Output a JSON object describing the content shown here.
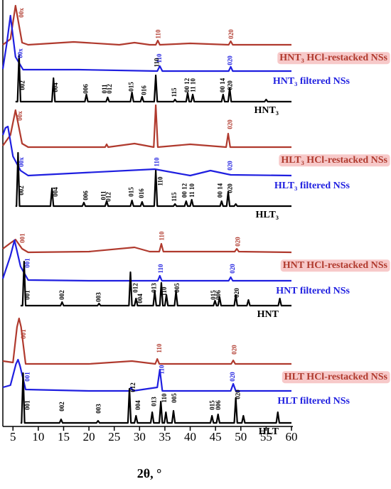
{
  "chart_data": {
    "type": "line",
    "x_label": "2θ, °",
    "xlim": [
      3,
      60
    ],
    "ylim": [
      0,
      600
    ],
    "xticks": [
      5,
      10,
      15,
      20,
      25,
      30,
      35,
      40,
      45,
      50,
      55,
      60
    ],
    "series": [
      {
        "name": "HNT₃ HCl-restacked NSs",
        "color": "#b03a2e",
        "x": [
          3,
          4.5,
          5.5,
          6.8,
          8,
          17,
          26,
          29,
          32,
          33.2,
          33.6,
          34,
          40,
          47.6,
          48,
          48.4,
          60
        ],
        "values": [
          537,
          545,
          592,
          540,
          537,
          541,
          537,
          540,
          537,
          537,
          543,
          537,
          539,
          537,
          542,
          537,
          537
        ]
      },
      {
        "name": "HNT₃ filtered NSs",
        "color": "#1f1fe0",
        "x": [
          3,
          3.8,
          4.5,
          5.5,
          7,
          18,
          33.5,
          34,
          34.5,
          47.6,
          48,
          48.4,
          60
        ],
        "values": [
          503,
          540,
          578,
          520,
          502,
          502,
          500,
          507,
          500,
          500,
          506,
          500,
          500
        ]
      },
      {
        "name": "HNT₃",
        "color": "#000000",
        "x": [
          5.5,
          5.9,
          6.2,
          6.5,
          12.7,
          13,
          13.3,
          19.2,
          19.5,
          19.8,
          23.4,
          23.7,
          24,
          28.2,
          28.5,
          28.8,
          30.2,
          30.5,
          30.8,
          32.9,
          33.2,
          33.5,
          36.7,
          37,
          37.3,
          39.2,
          39.5,
          39.8,
          40.2,
          40.5,
          40.8,
          46.2,
          46.5,
          46.8,
          47.5,
          47.8,
          48.1,
          54.7,
          55,
          55.3,
          60
        ],
        "values": [
          457,
          457,
          522,
          457,
          457,
          490,
          457,
          457,
          467,
          457,
          457,
          463,
          457,
          457,
          470,
          457,
          457,
          464,
          457,
          457,
          494,
          457,
          457,
          460,
          457,
          457,
          469,
          457,
          457,
          467,
          457,
          457,
          467,
          457,
          457,
          476,
          457,
          457,
          460,
          457,
          457
        ]
      },
      {
        "name": "HLT₃ HCl-restacked NSs",
        "color": "#b03a2e",
        "x": [
          3,
          4.5,
          5.5,
          6.8,
          8,
          23.2,
          23.5,
          23.8,
          29,
          32.8,
          33.2,
          33.6,
          40,
          47.1,
          47.5,
          47.9,
          60
        ],
        "values": [
          395,
          410,
          445,
          398,
          393,
          393,
          397,
          393,
          398,
          393,
          452,
          393,
          397,
          393,
          412,
          393,
          393
        ]
      },
      {
        "name": "HLT₃ filtered NSs",
        "color": "#1f1fe0",
        "x": [
          3,
          3.5,
          4,
          5,
          6.5,
          8,
          33,
          40,
          44,
          48,
          60
        ],
        "values": [
          410,
          420,
          422,
          380,
          360,
          353,
          362,
          353,
          360,
          354,
          353
        ]
      },
      {
        "name": "HLT₃",
        "color": "#000000",
        "x": [
          5.5,
          5.7,
          6,
          6.3,
          12.4,
          12.7,
          13,
          18.7,
          19,
          19.3,
          23.2,
          23.5,
          23.8,
          28.2,
          28.5,
          28.8,
          30.2,
          30.5,
          30.8,
          32.9,
          33.2,
          33.5,
          36.7,
          37,
          37.3,
          38.9,
          39.2,
          39.5,
          40,
          40.3,
          40.6,
          45.9,
          46.2,
          46.5,
          47.2,
          47.5,
          47.8,
          48.7,
          49,
          49.3,
          60
        ],
        "values": [
          310,
          310,
          385,
          310,
          310,
          335,
          310,
          310,
          315,
          310,
          310,
          317,
          310,
          310,
          318,
          310,
          310,
          316,
          310,
          310,
          360,
          310,
          310,
          313,
          310,
          310,
          317,
          310,
          310,
          319,
          310,
          310,
          317,
          310,
          310,
          330,
          310,
          310,
          313,
          310,
          310
        ]
      },
      {
        "name": "HNT HCl-restacked NSs",
        "color": "#b03a2e",
        "x": [
          3,
          4.5,
          5.5,
          6.8,
          8,
          20,
          29,
          32,
          33.9,
          34.3,
          34.7,
          45,
          48.8,
          49.2,
          49.6,
          60
        ],
        "values": [
          250,
          258,
          263,
          250,
          245,
          246,
          252,
          246,
          246,
          257,
          246,
          246,
          246,
          250,
          246,
          245
        ]
      },
      {
        "name": "HNT filtered NSs",
        "color": "#1f1fe0",
        "x": [
          3,
          4.5,
          5.3,
          6.5,
          8,
          20,
          33.6,
          34,
          34.4,
          47.6,
          48,
          48.4,
          60
        ],
        "values": [
          208,
          240,
          262,
          225,
          206,
          205,
          205,
          212,
          205,
          205,
          210,
          205,
          205
        ]
      },
      {
        "name": "HNT",
        "color": "#000000",
        "x": [
          6.5,
          6.9,
          7.2,
          7.5,
          14.4,
          14.7,
          15,
          21.7,
          22,
          22.3,
          27.9,
          28.2,
          28.5,
          29,
          29.3,
          29.6,
          32.7,
          33,
          33.3,
          34,
          34.3,
          34.6,
          35,
          35.3,
          35.6,
          36.9,
          37.2,
          37.5,
          44.6,
          44.9,
          45.2,
          45.5,
          45.8,
          46.1,
          48.7,
          49,
          49.3,
          51.2,
          51.5,
          51.8,
          57.4,
          57.7,
          58,
          60
        ],
        "values": [
          170,
          170,
          232,
          170,
          170,
          175,
          170,
          170,
          173,
          170,
          170,
          217,
          170,
          170,
          180,
          170,
          170,
          190,
          170,
          170,
          202,
          170,
          170,
          185,
          170,
          170,
          190,
          170,
          170,
          177,
          170,
          170,
          182,
          170,
          170,
          185,
          170,
          170,
          178,
          170,
          170,
          180,
          170,
          170
        ]
      },
      {
        "name": "HLT HCl-restacked NSs",
        "color": "#b03a2e",
        "x": [
          3,
          5,
          5.8,
          6.2,
          6.6,
          7.5,
          20,
          28.5,
          33.1,
          33.5,
          33.9,
          48.1,
          48.5,
          48.9,
          60
        ],
        "values": [
          92,
          90,
          140,
          152,
          140,
          88,
          88,
          92,
          88,
          95,
          88,
          88,
          93,
          88,
          88
        ]
      },
      {
        "name": "HLT filtered NSs",
        "color": "#1f1fe0",
        "x": [
          3,
          4.5,
          5.6,
          6,
          6.4,
          7.5,
          20,
          27.9,
          28.3,
          28.7,
          33.5,
          34,
          34.5,
          48,
          48.5,
          49,
          60
        ],
        "values": [
          55,
          58,
          88,
          94,
          85,
          52,
          50,
          50,
          55,
          50,
          55,
          80,
          50,
          50,
          60,
          50,
          50
        ]
      },
      {
        "name": "HLT",
        "color": "#000000",
        "x": [
          6.5,
          6.7,
          7,
          7.3,
          14.2,
          14.5,
          14.8,
          21.5,
          21.8,
          22.1,
          27.7,
          28,
          28.3,
          29,
          29.3,
          29.6,
          32.2,
          32.5,
          32.8,
          33.9,
          34.2,
          34.5,
          34.9,
          35.2,
          35.5,
          36.4,
          36.7,
          37,
          44,
          44.3,
          44.6,
          45.2,
          45.5,
          45.8,
          48.7,
          49,
          49.3,
          50.2,
          50.5,
          50.8,
          57,
          57.3,
          57.6,
          60
        ],
        "values": [
          5,
          5,
          75,
          5,
          5,
          10,
          5,
          5,
          8,
          5,
          5,
          53,
          5,
          5,
          15,
          5,
          5,
          20,
          5,
          5,
          35,
          5,
          5,
          20,
          5,
          5,
          22,
          5,
          5,
          15,
          5,
          5,
          17,
          5,
          5,
          40,
          5,
          5,
          15,
          5,
          5,
          20,
          5,
          5
        ]
      }
    ],
    "annotations": [
      {
        "text": "00x",
        "x": 6.8,
        "y": 582,
        "color": "#b03a2e"
      },
      {
        "text": "110",
        "x": 33.8,
        "y": 552,
        "color": "#b03a2e"
      },
      {
        "text": "020",
        "x": 48.2,
        "y": 552,
        "color": "#b03a2e"
      },
      {
        "text": "00x",
        "x": 6.6,
        "y": 525,
        "color": "#1f1fe0"
      },
      {
        "text": "110",
        "x": 34,
        "y": 518,
        "color": "#1f1fe0"
      },
      {
        "text": "020",
        "x": 48,
        "y": 515,
        "color": "#1f1fe0"
      },
      {
        "text": "002",
        "x": 7,
        "y": 480,
        "color": "#000000"
      },
      {
        "text": "004",
        "x": 13.5,
        "y": 477,
        "color": "#000000"
      },
      {
        "text": "006",
        "x": 19.5,
        "y": 475,
        "color": "#000000"
      },
      {
        "text": "011",
        "x": 23.2,
        "y": 475,
        "color": "#000000"
      },
      {
        "text": "012",
        "x": 24.2,
        "y": 475,
        "color": "#000000"
      },
      {
        "text": "015",
        "x": 28.5,
        "y": 478,
        "color": "#000000"
      },
      {
        "text": "016",
        "x": 31,
        "y": 473,
        "color": "#000000"
      },
      {
        "text": "110",
        "x": 33.5,
        "y": 512,
        "color": "#000000"
      },
      {
        "text": "115",
        "x": 37,
        "y": 470,
        "color": "#000000"
      },
      {
        "text": "00 12",
        "x": 39.5,
        "y": 480,
        "color": "#000000"
      },
      {
        "text": "11 10",
        "x": 40.7,
        "y": 480,
        "color": "#000000"
      },
      {
        "text": "00 14",
        "x": 46.5,
        "y": 480,
        "color": "#000000"
      },
      {
        "text": "020",
        "x": 48,
        "y": 480,
        "color": "#000000"
      },
      {
        "text": "00x",
        "x": 6.5,
        "y": 437,
        "color": "#b03a2e"
      },
      {
        "text": "020",
        "x": 48,
        "y": 425,
        "color": "#b03a2e"
      },
      {
        "text": "00x",
        "x": 6.8,
        "y": 372,
        "color": "#1f1fe0"
      },
      {
        "text": "110",
        "x": 33.5,
        "y": 372,
        "color": "#1f1fe0"
      },
      {
        "text": "020",
        "x": 48,
        "y": 367,
        "color": "#1f1fe0"
      },
      {
        "text": "002",
        "x": 6.8,
        "y": 332,
        "color": "#000000"
      },
      {
        "text": "004",
        "x": 13.5,
        "y": 330,
        "color": "#000000"
      },
      {
        "text": "006",
        "x": 19.5,
        "y": 325,
        "color": "#000000"
      },
      {
        "text": "011",
        "x": 23,
        "y": 325,
        "color": "#000000"
      },
      {
        "text": "012",
        "x": 24,
        "y": 323,
        "color": "#000000"
      },
      {
        "text": "015",
        "x": 28.5,
        "y": 330,
        "color": "#000000"
      },
      {
        "text": "016",
        "x": 30.5,
        "y": 328,
        "color": "#000000"
      },
      {
        "text": "110",
        "x": 34.2,
        "y": 345,
        "color": "#000000"
      },
      {
        "text": "115",
        "x": 37,
        "y": 323,
        "color": "#000000"
      },
      {
        "text": "00 12",
        "x": 39,
        "y": 332,
        "color": "#000000"
      },
      {
        "text": "11 10",
        "x": 40.5,
        "y": 332,
        "color": "#000000"
      },
      {
        "text": "00 14",
        "x": 46,
        "y": 332,
        "color": "#000000"
      },
      {
        "text": "020",
        "x": 48,
        "y": 335,
        "color": "#000000"
      },
      {
        "text": "001",
        "x": 7,
        "y": 265,
        "color": "#b03a2e"
      },
      {
        "text": "110",
        "x": 34.5,
        "y": 268,
        "color": "#b03a2e"
      },
      {
        "text": "020",
        "x": 49.5,
        "y": 260,
        "color": "#b03a2e"
      },
      {
        "text": "001",
        "x": 8,
        "y": 230,
        "color": "#1f1fe0"
      },
      {
        "text": "110",
        "x": 34.3,
        "y": 222,
        "color": "#1f1fe0"
      },
      {
        "text": "020",
        "x": 48.5,
        "y": 222,
        "color": "#1f1fe0"
      },
      {
        "text": "001",
        "x": 8,
        "y": 185,
        "color": "#000000"
      },
      {
        "text": "002",
        "x": 14.8,
        "y": 185,
        "color": "#000000"
      },
      {
        "text": "003",
        "x": 22,
        "y": 182,
        "color": "#000000"
      },
      {
        "text": "012",
        "x": 29.3,
        "y": 195,
        "color": "#000000"
      },
      {
        "text": "004",
        "x": 30.2,
        "y": 180,
        "color": "#000000"
      },
      {
        "text": "013",
        "x": 33,
        "y": 195,
        "color": "#000000"
      },
      {
        "text": "110",
        "x": 35,
        "y": 190,
        "color": "#000000"
      },
      {
        "text": "005",
        "x": 37.5,
        "y": 195,
        "color": "#000000"
      },
      {
        "text": "015",
        "x": 44.7,
        "y": 185,
        "color": "#000000"
      },
      {
        "text": "006",
        "x": 45.7,
        "y": 185,
        "color": "#000000"
      },
      {
        "text": "020",
        "x": 49.3,
        "y": 188,
        "color": "#000000"
      },
      {
        "text": "001",
        "x": 7.2,
        "y": 130,
        "color": "#b03a2e"
      },
      {
        "text": "110",
        "x": 34,
        "y": 110,
        "color": "#b03a2e"
      },
      {
        "text": "020",
        "x": 48.8,
        "y": 108,
        "color": "#b03a2e"
      },
      {
        "text": "001",
        "x": 8,
        "y": 70,
        "color": "#1f1fe0"
      },
      {
        "text": "110",
        "x": 34.5,
        "y": 80,
        "color": "#1f1fe0"
      },
      {
        "text": "020",
        "x": 48.5,
        "y": 70,
        "color": "#1f1fe0"
      },
      {
        "text": "001",
        "x": 8,
        "y": 30,
        "color": "#000000"
      },
      {
        "text": "002",
        "x": 14.8,
        "y": 28,
        "color": "#000000"
      },
      {
        "text": "003",
        "x": 22,
        "y": 25,
        "color": "#000000"
      },
      {
        "text": "012",
        "x": 28.8,
        "y": 55,
        "color": "#000000"
      },
      {
        "text": "004",
        "x": 29.8,
        "y": 30,
        "color": "#000000"
      },
      {
        "text": "013",
        "x": 33,
        "y": 35,
        "color": "#000000"
      },
      {
        "text": "110",
        "x": 35,
        "y": 40,
        "color": "#000000"
      },
      {
        "text": "005",
        "x": 37,
        "y": 40,
        "color": "#000000"
      },
      {
        "text": "015",
        "x": 44.5,
        "y": 30,
        "color": "#000000"
      },
      {
        "text": "006",
        "x": 45.7,
        "y": 30,
        "color": "#000000"
      },
      {
        "text": "020",
        "x": 49.5,
        "y": 45,
        "color": "#000000"
      }
    ]
  }
}
